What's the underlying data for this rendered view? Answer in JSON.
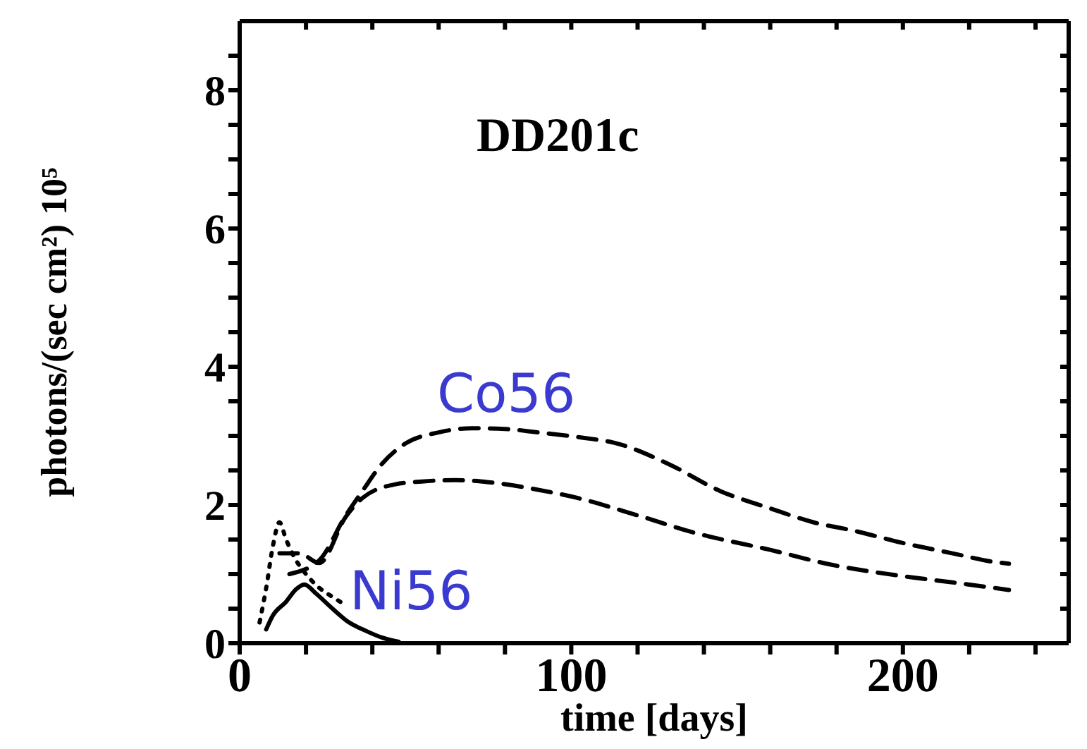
{
  "chart_data": {
    "type": "line",
    "title": "DD201c",
    "xlabel": "time [days]",
    "ylabel": "photons/(sec cm²) 10⁵",
    "xlim": [
      0,
      250
    ],
    "ylim": [
      0,
      9
    ],
    "xticks": [
      0,
      {
        "value": 20,
        "label": null
      },
      {
        "value": 40,
        "label": null
      },
      {
        "value": 60,
        "label": null
      },
      {
        "value": 80,
        "label": null
      },
      100,
      {
        "value": 120,
        "label": null
      },
      {
        "value": 140,
        "label": null
      },
      {
        "value": 160,
        "label": null
      },
      {
        "value": 180,
        "label": null
      },
      200,
      {
        "value": 220,
        "label": null
      },
      {
        "value": 240,
        "label": null
      }
    ],
    "yticks": [
      0,
      {
        "value": 0.5,
        "label": null
      },
      {
        "value": 1,
        "label": null
      },
      {
        "value": 1.5,
        "label": null
      },
      2,
      {
        "value": 2.5,
        "label": null
      },
      {
        "value": 3,
        "label": null
      },
      {
        "value": 3.5,
        "label": null
      },
      4,
      {
        "value": 4.5,
        "label": null
      },
      {
        "value": 5,
        "label": null
      },
      {
        "value": 5.5,
        "label": null
      },
      6,
      {
        "value": 6.5,
        "label": null
      },
      {
        "value": 7,
        "label": null
      },
      {
        "value": 7.5,
        "label": null
      },
      8,
      {
        "value": 8.5,
        "label": null
      }
    ],
    "series": [
      {
        "color": "#000000",
        "line_style": "dashed",
        "x": [
          15,
          24,
          32,
          37,
          43,
          50,
          60,
          70,
          80,
          90,
          104,
          113,
          129,
          145,
          160,
          173,
          185,
          200,
          215,
          227,
          232
        ],
        "values": [
          1.0,
          1.2,
          1.85,
          2.2,
          2.6,
          2.89,
          3.05,
          3.11,
          3.1,
          3.05,
          2.97,
          2.9,
          2.6,
          2.2,
          1.95,
          1.75,
          1.63,
          1.45,
          1.3,
          1.18,
          1.15
        ]
      },
      {
        "color": "#000000",
        "line_style": "dashed",
        "x": [
          12,
          18,
          24,
          32,
          37,
          47,
          55,
          65,
          75,
          90,
          102,
          120,
          137,
          160,
          178,
          200,
          215,
          232
        ],
        "values": [
          1.3,
          1.3,
          1.16,
          1.83,
          2.1,
          2.3,
          2.34,
          2.36,
          2.33,
          2.22,
          2.1,
          1.85,
          1.6,
          1.35,
          1.14,
          0.97,
          0.88,
          0.77
        ]
      },
      {
        "color": "#000000",
        "line_style": "solid",
        "x": [
          8,
          10,
          14,
          17,
          19.5,
          23,
          28,
          33,
          38,
          43,
          48
        ],
        "values": [
          0.2,
          0.4,
          0.6,
          0.78,
          0.85,
          0.72,
          0.5,
          0.3,
          0.18,
          0.08,
          0.02
        ]
      },
      {
        "color": "#000000",
        "line_style": "dotted",
        "x": [
          6,
          8,
          10,
          12,
          14,
          17,
          20,
          24,
          28,
          32
        ],
        "values": [
          0.3,
          0.8,
          1.4,
          1.75,
          1.5,
          1.2,
          1.0,
          0.8,
          0.67,
          0.55
        ]
      }
    ],
    "annotations": [
      "Co56",
      "Ni56"
    ]
  }
}
